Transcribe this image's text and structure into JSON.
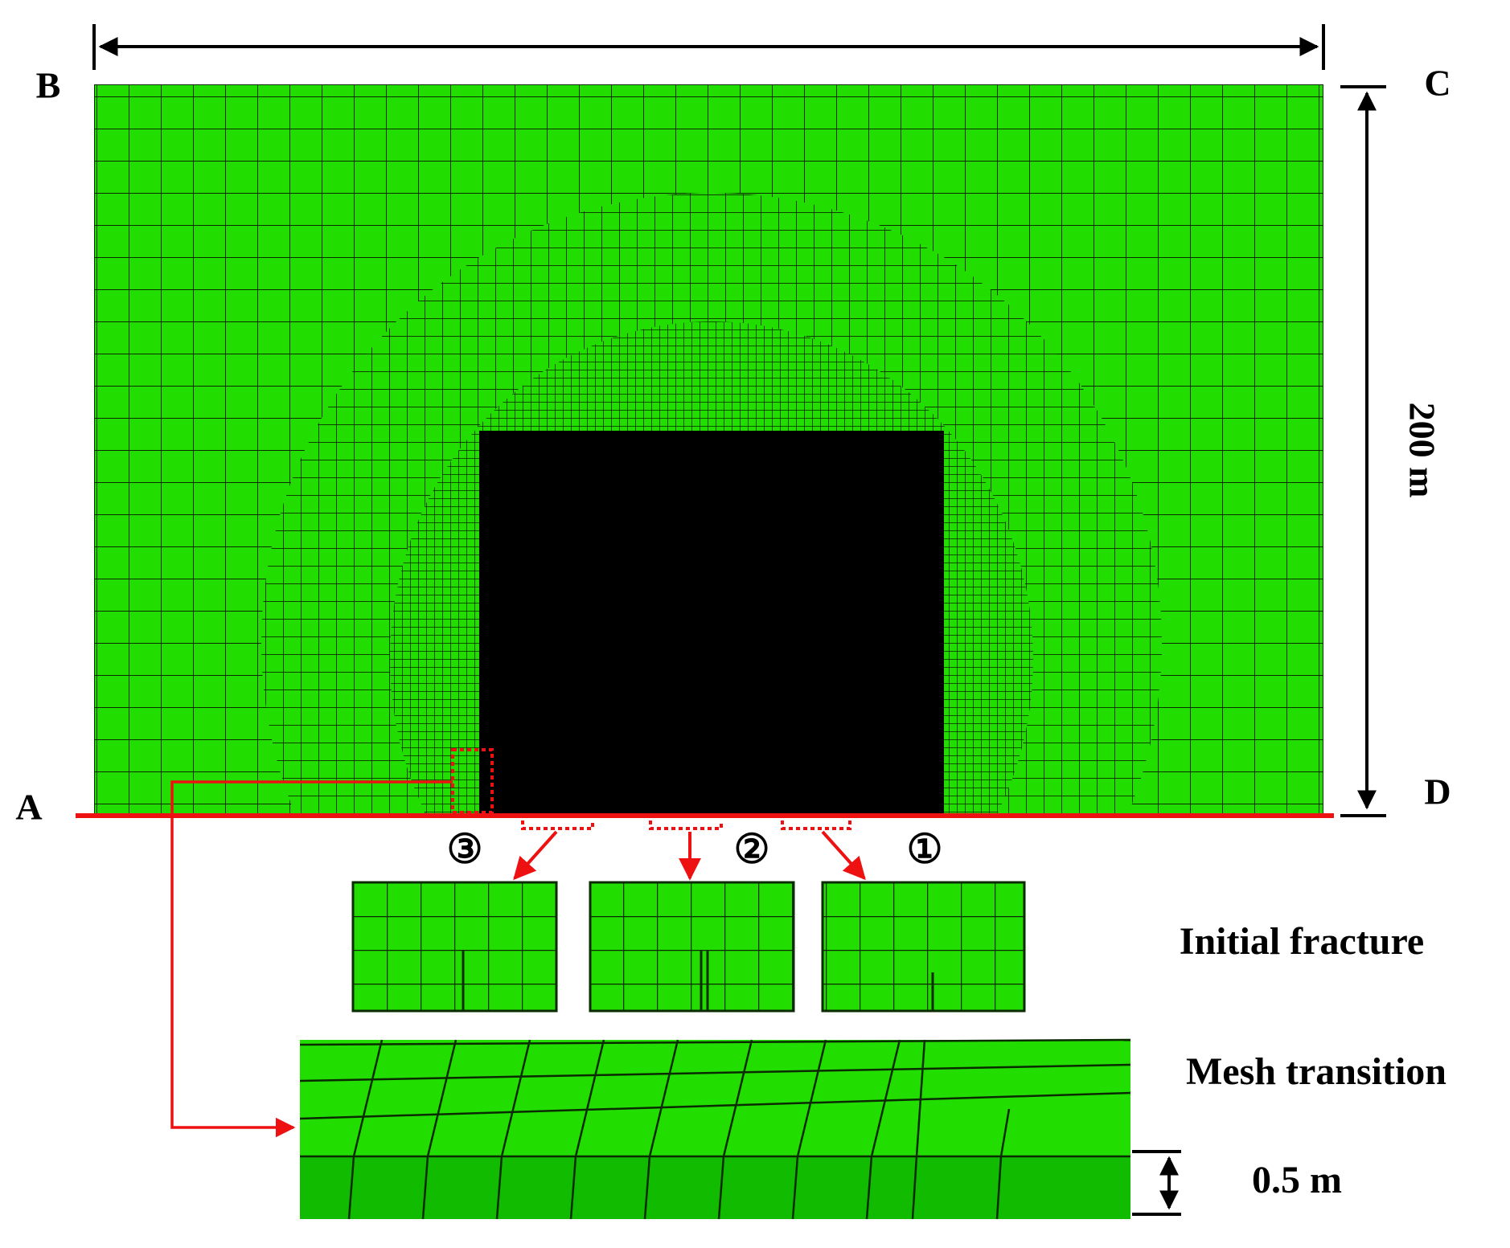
{
  "corners": {
    "a": "A",
    "b": "B",
    "c": "C",
    "d": "D"
  },
  "dimensions": {
    "height": "200 m",
    "layer": "0.5 m"
  },
  "fractures": [
    {
      "label": "③"
    },
    {
      "label": "②"
    },
    {
      "label": "①"
    }
  ],
  "captions": {
    "initial_fracture": "Initial fracture",
    "mesh_transition": "Mesh transition"
  }
}
